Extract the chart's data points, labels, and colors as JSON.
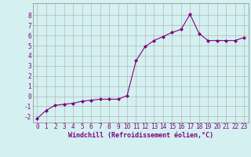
{
  "x": [
    0,
    1,
    2,
    3,
    4,
    5,
    6,
    7,
    8,
    9,
    10,
    11,
    12,
    13,
    14,
    15,
    16,
    17,
    18,
    19,
    20,
    21,
    22,
    23
  ],
  "y": [
    -2.2,
    -1.4,
    -0.9,
    -0.8,
    -0.7,
    -0.5,
    -0.4,
    -0.3,
    -0.3,
    -0.3,
    0.05,
    3.5,
    4.9,
    5.5,
    5.9,
    6.3,
    6.6,
    8.1,
    6.2,
    5.5,
    5.5,
    5.5,
    5.5,
    5.8
  ],
  "line_color": "#800080",
  "marker": "D",
  "marker_size": 2,
  "xlim": [
    -0.5,
    23.5
  ],
  "ylim": [
    -2.6,
    9.2
  ],
  "yticks": [
    -2,
    -1,
    0,
    1,
    2,
    3,
    4,
    5,
    6,
    7,
    8
  ],
  "xtick_labels": [
    "0",
    "1",
    "2",
    "3",
    "4",
    "5",
    "6",
    "7",
    "8",
    "9",
    "10",
    "11",
    "12",
    "13",
    "14",
    "15",
    "16",
    "17",
    "18",
    "19",
    "20",
    "21",
    "22",
    "23"
  ],
  "xlabel": "Windchill (Refroidissement éolien,°C)",
  "background_color": "#d4f0f0",
  "grid_color": "#aaaaaa",
  "text_color": "#800080",
  "font": "monospace",
  "tick_fontsize": 5.5,
  "label_fontsize": 6.0
}
